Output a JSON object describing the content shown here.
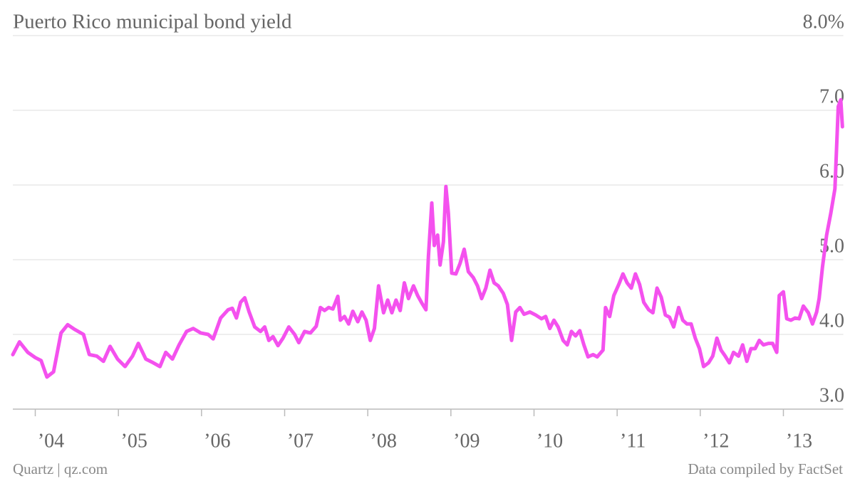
{
  "chart_data": {
    "type": "line",
    "title": "Puerto Rico municipal bond yield",
    "source_left": "Quartz | qz.com",
    "source_right": "Data compiled by FactSet",
    "color": "#f451ee",
    "grid": true,
    "xlim": [
      2003.73,
      2013.72
    ],
    "xticks": [
      {
        "value": 2004,
        "label": "’04"
      },
      {
        "value": 2005,
        "label": "’05"
      },
      {
        "value": 2006,
        "label": "’06"
      },
      {
        "value": 2007,
        "label": "’07"
      },
      {
        "value": 2008,
        "label": "’08"
      },
      {
        "value": 2009,
        "label": "’09"
      },
      {
        "value": 2010,
        "label": "’10"
      },
      {
        "value": 2011,
        "label": "’11"
      },
      {
        "value": 2012,
        "label": "’12"
      },
      {
        "value": 2013,
        "label": "’13"
      }
    ],
    "ylim": [
      3,
      8
    ],
    "yticks": [
      {
        "value": 3,
        "label": "3.0"
      },
      {
        "value": 4,
        "label": "4.0"
      },
      {
        "value": 5,
        "label": "5.0"
      },
      {
        "value": 6,
        "label": "6.0"
      },
      {
        "value": 7,
        "label": "7.0"
      },
      {
        "value": 8,
        "label": "8.0%"
      }
    ],
    "x": [
      2003.73,
      2003.81,
      2003.91,
      2004.0,
      2004.07,
      2004.14,
      2004.22,
      2004.31,
      2004.39,
      2004.47,
      2004.58,
      2004.65,
      2004.74,
      2004.82,
      2004.9,
      2004.99,
      2005.08,
      2005.17,
      2005.24,
      2005.33,
      2005.42,
      2005.5,
      2005.57,
      2005.65,
      2005.73,
      2005.82,
      2005.9,
      2005.99,
      2006.08,
      2006.14,
      2006.23,
      2006.32,
      2006.37,
      2006.42,
      2006.47,
      2006.52,
      2006.57,
      2006.64,
      2006.71,
      2006.76,
      2006.81,
      2006.86,
      2006.92,
      2006.98,
      2007.05,
      2007.12,
      2007.17,
      2007.24,
      2007.31,
      2007.38,
      2007.43,
      2007.48,
      2007.53,
      2007.58,
      2007.64,
      2007.67,
      2007.72,
      2007.77,
      2007.82,
      2007.88,
      2007.93,
      2007.98,
      2008.03,
      2008.08,
      2008.13,
      2008.19,
      2008.24,
      2008.29,
      2008.34,
      2008.39,
      2008.44,
      2008.49,
      2008.55,
      2008.6,
      2008.65,
      2008.7,
      2008.73,
      2008.77,
      2008.8,
      2008.84,
      2008.87,
      2008.91,
      2008.94,
      2008.97,
      2009.01,
      2009.06,
      2009.11,
      2009.16,
      2009.21,
      2009.27,
      2009.32,
      2009.37,
      2009.42,
      2009.47,
      2009.52,
      2009.57,
      2009.63,
      2009.68,
      2009.73,
      2009.78,
      2009.83,
      2009.88,
      2009.95,
      2010.02,
      2010.09,
      2010.14,
      2010.19,
      2010.24,
      2010.29,
      2010.35,
      2010.4,
      2010.45,
      2010.5,
      2010.55,
      2010.6,
      2010.65,
      2010.71,
      2010.76,
      2010.83,
      2010.86,
      2010.91,
      2010.96,
      2011.02,
      2011.07,
      2011.12,
      2011.17,
      2011.22,
      2011.27,
      2011.32,
      2011.38,
      2011.43,
      2011.48,
      2011.53,
      2011.58,
      2011.63,
      2011.68,
      2011.74,
      2011.79,
      2011.84,
      2011.89,
      2011.94,
      2011.99,
      2012.04,
      2012.1,
      2012.15,
      2012.2,
      2012.25,
      2012.3,
      2012.35,
      2012.4,
      2012.46,
      2012.51,
      2012.56,
      2012.61,
      2012.66,
      2012.71,
      2012.76,
      2012.82,
      2012.87,
      2012.92,
      2012.95,
      2013.0,
      2013.04,
      2013.09,
      2013.14,
      2013.19,
      2013.24,
      2013.3,
      2013.35,
      2013.4,
      2013.43,
      2013.47,
      2013.52,
      2013.57,
      2013.62,
      2013.66,
      2013.69,
      2013.71
    ],
    "values": [
      3.73,
      3.9,
      3.76,
      3.69,
      3.65,
      3.43,
      3.5,
      4.02,
      4.13,
      4.07,
      4.0,
      3.73,
      3.71,
      3.64,
      3.84,
      3.67,
      3.57,
      3.71,
      3.88,
      3.67,
      3.62,
      3.57,
      3.76,
      3.67,
      3.86,
      4.04,
      4.08,
      4.02,
      4.0,
      3.94,
      4.22,
      4.33,
      4.35,
      4.22,
      4.43,
      4.49,
      4.31,
      4.1,
      4.04,
      4.1,
      3.92,
      3.97,
      3.85,
      3.95,
      4.1,
      4.0,
      3.89,
      4.04,
      4.02,
      4.11,
      4.36,
      4.32,
      4.36,
      4.34,
      4.51,
      4.19,
      4.24,
      4.14,
      4.31,
      4.17,
      4.3,
      4.19,
      3.92,
      4.08,
      4.65,
      4.29,
      4.46,
      4.29,
      4.46,
      4.32,
      4.69,
      4.48,
      4.65,
      4.52,
      4.42,
      4.33,
      5.05,
      5.76,
      5.19,
      5.33,
      4.93,
      5.24,
      5.98,
      5.62,
      4.82,
      4.81,
      4.95,
      5.14,
      4.84,
      4.76,
      4.65,
      4.48,
      4.62,
      4.86,
      4.69,
      4.65,
      4.55,
      4.4,
      3.92,
      4.3,
      4.36,
      4.27,
      4.3,
      4.26,
      4.21,
      4.24,
      4.08,
      4.19,
      4.1,
      3.92,
      3.86,
      4.04,
      3.98,
      4.05,
      3.86,
      3.7,
      3.73,
      3.7,
      3.79,
      4.36,
      4.24,
      4.52,
      4.67,
      4.81,
      4.69,
      4.62,
      4.81,
      4.67,
      4.43,
      4.33,
      4.29,
      4.62,
      4.5,
      4.26,
      4.23,
      4.1,
      4.36,
      4.19,
      4.14,
      4.14,
      3.95,
      3.81,
      3.57,
      3.62,
      3.71,
      3.95,
      3.79,
      3.71,
      3.62,
      3.76,
      3.71,
      3.86,
      3.64,
      3.81,
      3.81,
      3.92,
      3.86,
      3.88,
      3.88,
      3.76,
      4.52,
      4.57,
      4.21,
      4.19,
      4.22,
      4.21,
      4.38,
      4.29,
      4.14,
      4.3,
      4.48,
      4.9,
      5.33,
      5.62,
      5.95,
      7.05,
      7.14,
      6.78
    ]
  }
}
